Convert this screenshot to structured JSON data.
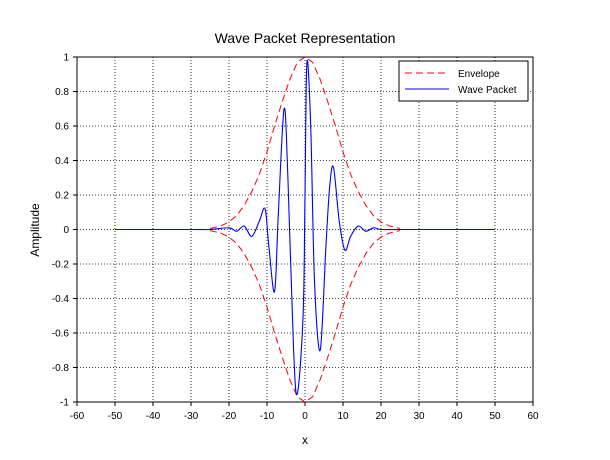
{
  "chart_data": {
    "type": "line",
    "title": "Wave Packet Representation",
    "xlabel": "x",
    "ylabel": "Amplitude",
    "xlim": [
      -60,
      60
    ],
    "ylim": [
      -1,
      1
    ],
    "xticks": [
      -60,
      -50,
      -40,
      -30,
      -20,
      -10,
      0,
      10,
      20,
      30,
      40,
      50,
      60
    ],
    "yticks": [
      -1,
      -0.8,
      -0.6,
      -0.4,
      -0.2,
      0,
      0.2,
      0.4,
      0.6,
      0.8,
      1
    ],
    "xtick_labels": [
      "-60",
      "-50",
      "-40",
      "-30",
      "-20",
      "-10",
      "0",
      "10",
      "20",
      "30",
      "40",
      "50",
      "60"
    ],
    "ytick_labels": [
      "-1",
      "-0.8",
      "-0.6",
      "-0.4",
      "-0.2",
      "0",
      "0.2",
      "0.4",
      "0.6",
      "0.8",
      "1"
    ],
    "grid": true,
    "legend_position": "top-right",
    "series": [
      {
        "name": "Envelope",
        "color": "#ff0000",
        "style": "dashed",
        "x": [
          -25,
          -22,
          -20,
          -18,
          -16,
          -14,
          -12,
          -10,
          -8,
          -6,
          -4,
          -2,
          0,
          2,
          4,
          6,
          8,
          10,
          12,
          14,
          16,
          18,
          20,
          22,
          25
        ],
        "y_upper": [
          0.006,
          0.022,
          0.044,
          0.08,
          0.14,
          0.22,
          0.32,
          0.45,
          0.6,
          0.74,
          0.87,
          0.97,
          1.0,
          0.97,
          0.87,
          0.74,
          0.6,
          0.45,
          0.32,
          0.22,
          0.14,
          0.08,
          0.044,
          0.022,
          0.006
        ],
        "y_lower": [
          -0.006,
          -0.022,
          -0.044,
          -0.08,
          -0.14,
          -0.22,
          -0.32,
          -0.45,
          -0.6,
          -0.74,
          -0.87,
          -0.97,
          -1.0,
          -0.97,
          -0.87,
          -0.74,
          -0.6,
          -0.45,
          -0.32,
          -0.22,
          -0.14,
          -0.08,
          -0.044,
          -0.022,
          -0.006
        ]
      },
      {
        "name": "Wave Packet",
        "color": "#0000ff",
        "style": "solid",
        "x": [
          -50,
          -30,
          -25,
          -20,
          -18,
          -16,
          -14,
          -12,
          -10.5,
          -9.5,
          -8,
          -7,
          -5.5,
          -4.5,
          -3,
          -2,
          -0.5,
          0,
          0.5,
          1.5,
          2.5,
          4,
          5.5,
          6.5,
          7.5,
          9,
          10.5,
          12,
          14,
          16,
          18,
          20,
          25,
          30,
          50
        ],
        "y": [
          0,
          0,
          0,
          0.01,
          -0.01,
          0.02,
          -0.04,
          0.05,
          0.12,
          -0.1,
          -0.36,
          0.1,
          0.7,
          0.3,
          -0.7,
          -0.95,
          -0.5,
          0.2,
          0.97,
          0.6,
          -0.3,
          -0.7,
          -0.1,
          0.25,
          0.36,
          0.05,
          -0.12,
          -0.04,
          0.02,
          -0.01,
          0.01,
          0.0,
          0,
          0,
          0
        ]
      }
    ]
  }
}
